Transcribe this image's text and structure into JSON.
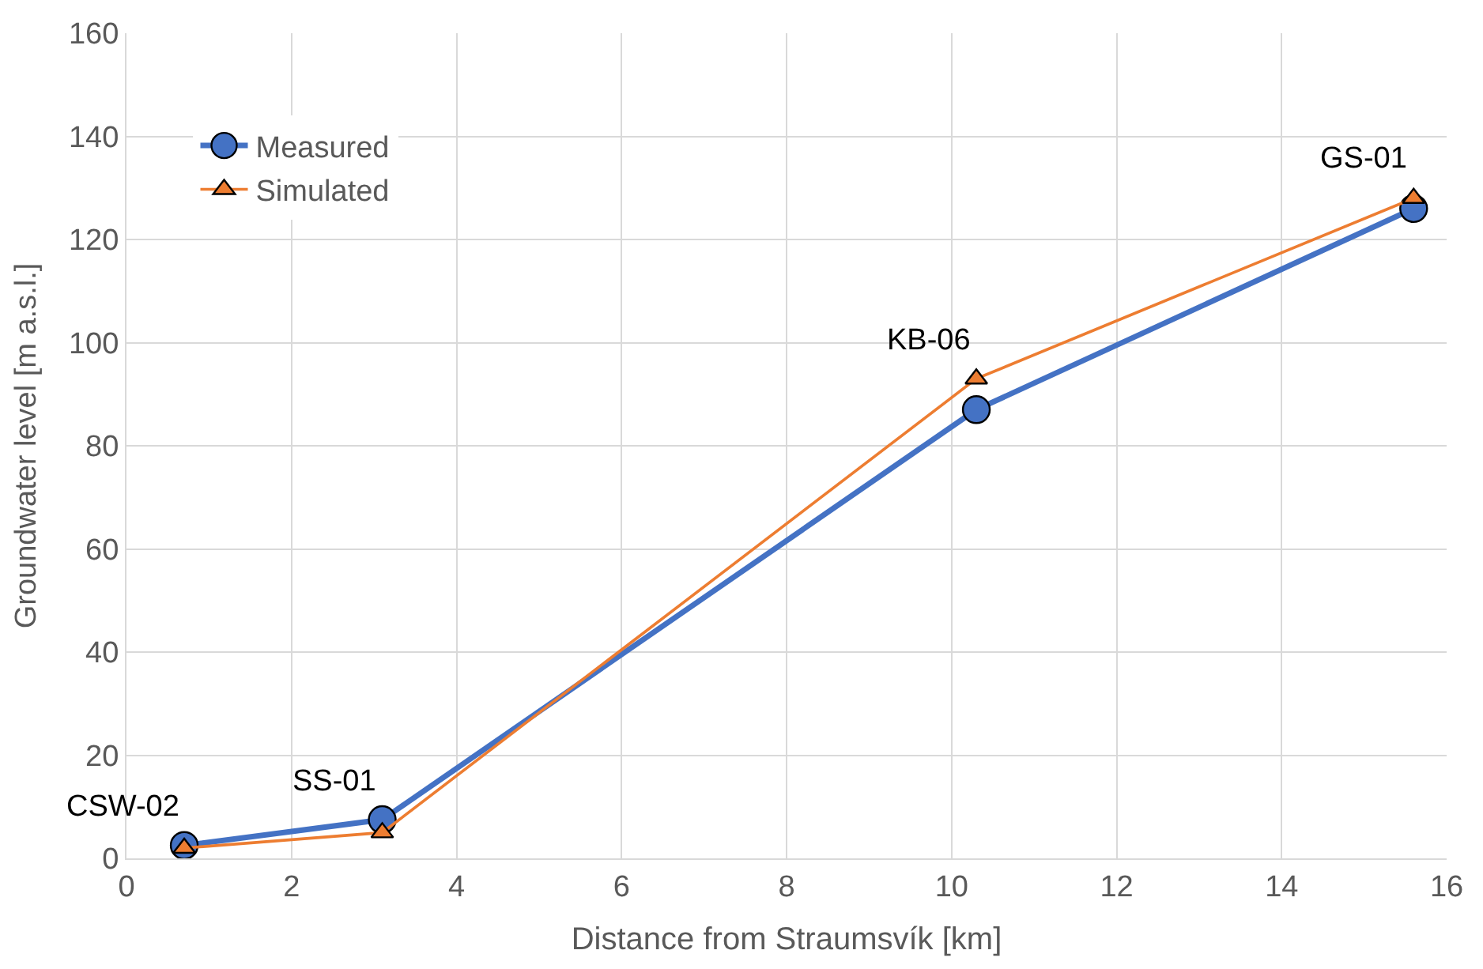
{
  "chart_data": {
    "type": "line",
    "xlabel": "Distance from Straumsvík [km]",
    "ylabel": "Groundwater level [m a.s.l.]",
    "xlim": [
      0,
      16
    ],
    "xticks": [
      0,
      2,
      4,
      6,
      8,
      10,
      12,
      14,
      16
    ],
    "ylim": [
      0,
      160
    ],
    "yticks": [
      0,
      20,
      40,
      60,
      80,
      100,
      120,
      140,
      160
    ],
    "grid": true,
    "legend": "top left",
    "series": [
      {
        "name": "Measured",
        "color": "#4472c4",
        "marker": "circle",
        "x": [
          0.7,
          3.1,
          10.3,
          15.6
        ],
        "values": [
          2.5,
          7.5,
          87,
          126
        ]
      },
      {
        "name": "Simulated",
        "color": "#ed7d31",
        "marker": "triangle",
        "x": [
          0.7,
          3.1,
          10.3,
          15.6
        ],
        "values": [
          2,
          5,
          93,
          128
        ]
      }
    ],
    "annotations": [
      {
        "text": "CSW-02",
        "x": 0.7,
        "y": 2.5
      },
      {
        "text": "SS-01",
        "x": 3.1,
        "y": 7.5
      },
      {
        "text": "KB-06",
        "x": 10.3,
        "y": 93
      },
      {
        "text": "GS-01",
        "x": 15.6,
        "y": 128
      }
    ]
  }
}
